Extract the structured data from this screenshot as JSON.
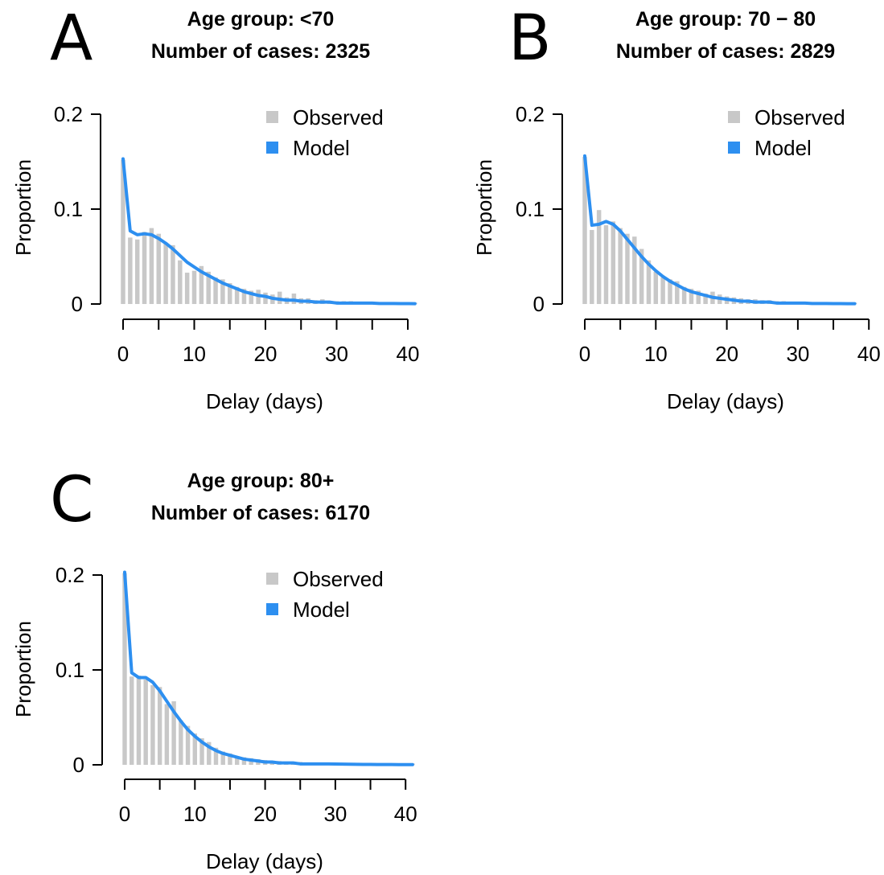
{
  "chart_data": [
    {
      "panel": "A",
      "type": "bar",
      "title": "Age group: <70",
      "subtitle": "Number of cases: 2325",
      "xlabel": "Delay (days)",
      "ylabel": "Proportion",
      "xlim": [
        0,
        41
      ],
      "ylim": [
        0,
        0.2
      ],
      "xticks": [
        0,
        10,
        20,
        30,
        40
      ],
      "yticks": [
        0,
        0.1,
        0.2
      ],
      "ytick_labels": [
        "0",
        "0.1",
        "0.2"
      ],
      "legend": {
        "position": "top-right",
        "entries": [
          "Observed",
          "Model"
        ]
      },
      "x": [
        0,
        1,
        2,
        3,
        4,
        5,
        6,
        7,
        8,
        9,
        10,
        11,
        12,
        13,
        14,
        15,
        16,
        17,
        18,
        19,
        20,
        21,
        22,
        23,
        24,
        25,
        26,
        27,
        28,
        29,
        30,
        31,
        32,
        33,
        34,
        35,
        36,
        37,
        38,
        39,
        40,
        41
      ],
      "series": [
        {
          "name": "Observed",
          "kind": "bar",
          "color": "#c8c8c8",
          "values": [
            0.152,
            0.07,
            0.068,
            0.076,
            0.08,
            0.074,
            0.064,
            0.062,
            0.046,
            0.033,
            0.035,
            0.04,
            0.034,
            0.028,
            0.026,
            0.022,
            0.018,
            0.016,
            0.014,
            0.015,
            0.012,
            0.01,
            0.013,
            0.007,
            0.011,
            0.006,
            0.006,
            0.004,
            0.005,
            0.003,
            0.003,
            0.003,
            0.003,
            0.002,
            0.002,
            0.002,
            0.002,
            0.001,
            0.001,
            0.001,
            0.001,
            0.001
          ]
        },
        {
          "name": "Model",
          "kind": "line",
          "color": "#2d8ff0",
          "values": [
            0.153,
            0.077,
            0.073,
            0.074,
            0.073,
            0.069,
            0.064,
            0.058,
            0.051,
            0.044,
            0.039,
            0.034,
            0.03,
            0.026,
            0.022,
            0.019,
            0.016,
            0.013,
            0.011,
            0.009,
            0.008,
            0.006,
            0.005,
            0.004,
            0.004,
            0.003,
            0.003,
            0.002,
            0.002,
            0.002,
            0.001,
            0.001,
            0.001,
            0.001,
            0.001,
            0.001,
            0.0005,
            0.0005,
            0.0005,
            0.0004,
            0.0004,
            0.0003
          ]
        }
      ]
    },
    {
      "panel": "B",
      "type": "bar",
      "title": "Age group: 70 − 80",
      "subtitle": "Number of cases: 2829",
      "xlabel": "Delay (days)",
      "ylabel": "Proportion",
      "xlim": [
        0,
        38
      ],
      "ylim": [
        0,
        0.2
      ],
      "xticks": [
        0,
        10,
        20,
        30,
        40
      ],
      "yticks": [
        0,
        0.1,
        0.2
      ],
      "ytick_labels": [
        "0",
        "0.1",
        "0.2"
      ],
      "legend": {
        "position": "top-right",
        "entries": [
          "Observed",
          "Model"
        ]
      },
      "x": [
        0,
        1,
        2,
        3,
        4,
        5,
        6,
        7,
        8,
        9,
        10,
        11,
        12,
        13,
        14,
        15,
        16,
        17,
        18,
        19,
        20,
        21,
        22,
        23,
        24,
        25,
        26,
        27,
        28,
        29,
        30,
        31,
        32,
        33,
        34,
        35,
        36,
        37,
        38
      ],
      "series": [
        {
          "name": "Observed",
          "kind": "bar",
          "color": "#c8c8c8",
          "values": [
            0.155,
            0.078,
            0.099,
            0.083,
            0.087,
            0.08,
            0.074,
            0.071,
            0.058,
            0.046,
            0.034,
            0.028,
            0.026,
            0.024,
            0.018,
            0.016,
            0.014,
            0.011,
            0.013,
            0.01,
            0.008,
            0.007,
            0.006,
            0.005,
            0.005,
            0.004,
            0.004,
            0.003,
            0.003,
            0.002,
            0.002,
            0.002,
            0.002,
            0.002,
            0.001,
            0.001,
            0.001,
            0.001,
            0.001
          ]
        },
        {
          "name": "Model",
          "kind": "line",
          "color": "#2d8ff0",
          "values": [
            0.156,
            0.083,
            0.084,
            0.087,
            0.084,
            0.077,
            0.068,
            0.059,
            0.05,
            0.042,
            0.035,
            0.029,
            0.024,
            0.02,
            0.016,
            0.013,
            0.011,
            0.009,
            0.007,
            0.006,
            0.005,
            0.004,
            0.003,
            0.003,
            0.002,
            0.002,
            0.002,
            0.001,
            0.001,
            0.001,
            0.001,
            0.001,
            0.0005,
            0.0005,
            0.0005,
            0.0004,
            0.0004,
            0.0003,
            0.0003
          ]
        }
      ]
    },
    {
      "panel": "C",
      "type": "bar",
      "title": "Age group: 80+",
      "subtitle": "Number of cases: 6170",
      "xlabel": "Delay (days)",
      "ylabel": "Proportion",
      "xlim": [
        0,
        41
      ],
      "ylim": [
        0,
        0.2
      ],
      "xticks": [
        0,
        10,
        20,
        30,
        40
      ],
      "yticks": [
        0,
        0.1,
        0.2
      ],
      "ytick_labels": [
        "0",
        "0.1",
        "0.2"
      ],
      "legend": {
        "position": "top-right",
        "entries": [
          "Observed",
          "Model"
        ]
      },
      "x": [
        0,
        1,
        2,
        3,
        4,
        5,
        6,
        7,
        8,
        9,
        10,
        11,
        12,
        13,
        14,
        15,
        16,
        17,
        18,
        19,
        20,
        21,
        22,
        23,
        24,
        25,
        26,
        27,
        28,
        29,
        30,
        31,
        32,
        33,
        34,
        35,
        36,
        37,
        38,
        39,
        40,
        41
      ],
      "series": [
        {
          "name": "Observed",
          "kind": "bar",
          "color": "#c8c8c8",
          "values": [
            0.202,
            0.093,
            0.094,
            0.09,
            0.084,
            0.082,
            0.064,
            0.067,
            0.047,
            0.041,
            0.033,
            0.028,
            0.024,
            0.018,
            0.014,
            0.012,
            0.009,
            0.008,
            0.007,
            0.006,
            0.005,
            0.004,
            0.004,
            0.003,
            0.003,
            0.003,
            0.002,
            0.002,
            0.002,
            0.002,
            0.001,
            0.001,
            0.001,
            0.001,
            0.001,
            0.001,
            0.001,
            0.001,
            0.001,
            0.001,
            0.001,
            0.001
          ]
        },
        {
          "name": "Model",
          "kind": "line",
          "color": "#2d8ff0",
          "values": [
            0.203,
            0.097,
            0.092,
            0.092,
            0.087,
            0.078,
            0.067,
            0.056,
            0.046,
            0.037,
            0.03,
            0.024,
            0.019,
            0.015,
            0.012,
            0.01,
            0.008,
            0.006,
            0.005,
            0.004,
            0.003,
            0.003,
            0.002,
            0.002,
            0.002,
            0.001,
            0.001,
            0.001,
            0.001,
            0.001,
            0.0008,
            0.0007,
            0.0006,
            0.0005,
            0.0004,
            0.0004,
            0.0003,
            0.0003,
            0.0003,
            0.0002,
            0.0002,
            0.0002
          ]
        }
      ]
    }
  ]
}
